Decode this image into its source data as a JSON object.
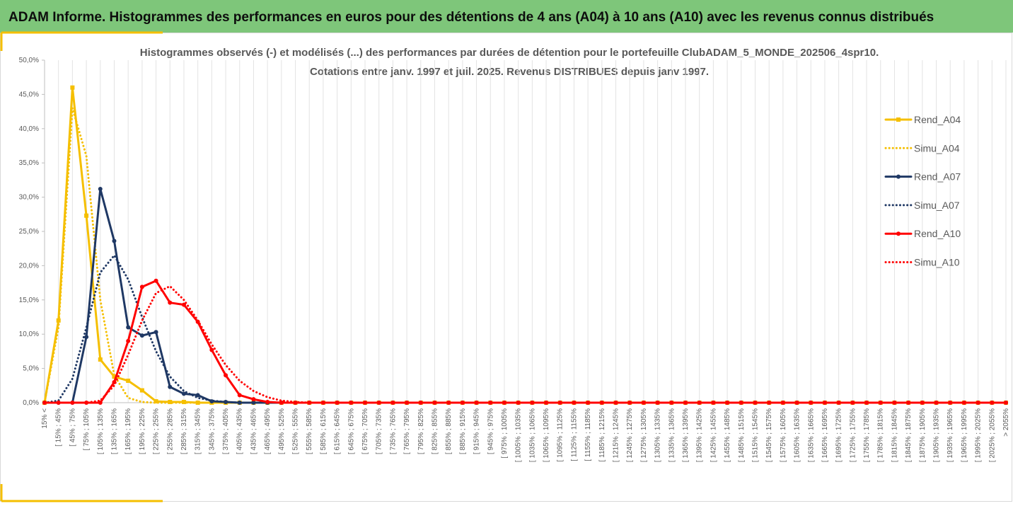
{
  "header": {
    "title": "ADAM Informe. Histogrammes des performances en euros pour des détentions de 4 ans (A04) à 10 ans (A10) avec les revenus connus distribués"
  },
  "chart_data": {
    "type": "line",
    "title": "Histogrammes observés (-) et modélisés (...) des performances par durées de détention pour le portefeuille ClubADAM_5_MONDE_202506_4spr10.",
    "subtitle": "Cotations entre janv. 1997 et juil. 2025. Revenus DISTRIBUES depuis janv 1997.",
    "categories": [
      "15% <",
      "[ 15% ; 45%",
      "[ 45% ; 75%",
      "[ 75% ; 105%",
      "[ 105% ; 135%",
      "[ 135% ; 165%",
      "[ 165% ; 195%",
      "[ 195% ; 225%",
      "[ 225% ; 255%",
      "[ 255% ; 285%",
      "[ 285% ; 315%",
      "[ 315% ; 345%",
      "[ 345% ; 375%",
      "[ 375% ; 405%",
      "[ 405% ; 435%",
      "[ 435% ; 465%",
      "[ 465% ; 495%",
      "[ 495% ; 525%",
      "[ 525% ; 555%",
      "[ 555% ; 585%",
      "[ 585% ; 615%",
      "[ 615% ; 645%",
      "[ 645% ; 675%",
      "[ 675% ; 705%",
      "[ 705% ; 735%",
      "[ 735% ; 765%",
      "[ 765% ; 795%",
      "[ 795% ; 825%",
      "[ 825% ; 855%",
      "[ 855% ; 885%",
      "[ 885% ; 915%",
      "[ 915% ; 945%",
      "[ 945% ; 975%",
      "[ 975% ; 1005%",
      "[ 1005% ; 1035%",
      "[ 1035% ; 1065%",
      "[ 1065% ; 1095%",
      "[ 1095% ; 1125%",
      "[ 1125% ; 1155%",
      "[ 1155% ; 1185%",
      "[ 1185% ; 1215%",
      "[ 1215% ; 1245%",
      "[ 1245% ; 1275%",
      "[ 1275% ; 1305%",
      "[ 1305% ; 1335%",
      "[ 1335% ; 1365%",
      "[ 1365% ; 1395%",
      "[ 1395% ; 1425%",
      "[ 1425% ; 1455%",
      "[ 1455% ; 1485%",
      "[ 1485% ; 1515%",
      "[ 1515% ; 1545%",
      "[ 1545% ; 1575%",
      "[ 1575% ; 1605%",
      "[ 1605% ; 1635%",
      "[ 1635% ; 1665%",
      "[ 1665% ; 1695%",
      "[ 1695% ; 1725%",
      "[ 1725% ; 1755%",
      "[ 1755% ; 1785%",
      "[ 1785% ; 1815%",
      "[ 1815% ; 1845%",
      "[ 1845% ; 1875%",
      "[ 1875% ; 1905%",
      "[ 1905% ; 1935%",
      "[ 1935% ; 1965%",
      "[ 1965% ; 1995%",
      "[ 1995% ; 2025%",
      "[ 2025% ; 2055%",
      "> 2055%"
    ],
    "series": [
      {
        "name": "Rend_A04",
        "color": "#f5bf00",
        "dash": "solid",
        "marker": "square",
        "values": [
          0,
          12,
          46,
          27.3,
          6.3,
          3.8,
          3.2,
          1.8,
          0.2,
          0.1,
          0.1,
          0,
          0,
          0,
          0,
          0,
          0,
          0,
          0,
          0,
          0,
          0,
          0,
          0,
          0,
          0,
          0,
          0,
          0,
          0,
          0,
          0,
          0,
          0,
          0,
          0,
          0,
          0,
          0,
          0,
          0,
          0,
          0,
          0,
          0,
          0,
          0,
          0,
          0,
          0,
          0,
          0,
          0,
          0,
          0,
          0,
          0,
          0,
          0,
          0,
          0,
          0,
          0,
          0,
          0,
          0,
          0,
          0,
          0,
          0
        ]
      },
      {
        "name": "Simu_A04",
        "color": "#f5bf00",
        "dash": "dotted",
        "marker": null,
        "values": [
          0,
          11,
          43,
          36,
          15,
          4,
          0.7,
          0.1,
          0,
          0,
          0,
          0,
          0,
          0,
          0,
          0,
          0,
          0,
          0,
          0,
          0,
          0,
          0,
          0,
          0,
          0,
          0,
          0,
          0,
          0,
          0,
          0,
          0,
          0,
          0,
          0,
          0,
          0,
          0,
          0,
          0,
          0,
          0,
          0,
          0,
          0,
          0,
          0,
          0,
          0,
          0,
          0,
          0,
          0,
          0,
          0,
          0,
          0,
          0,
          0,
          0,
          0,
          0,
          0,
          0,
          0,
          0,
          0,
          0,
          0
        ]
      },
      {
        "name": "Rend_A07",
        "color": "#1f3864",
        "dash": "solid",
        "marker": "circle",
        "values": [
          0,
          0,
          0,
          9.6,
          31.2,
          23.6,
          11,
          9.8,
          10.3,
          2.3,
          1.3,
          1.1,
          0.2,
          0.1,
          0,
          0,
          0,
          0,
          0,
          0,
          0,
          0,
          0,
          0,
          0,
          0,
          0,
          0,
          0,
          0,
          0,
          0,
          0,
          0,
          0,
          0,
          0,
          0,
          0,
          0,
          0,
          0,
          0,
          0,
          0,
          0,
          0,
          0,
          0,
          0,
          0,
          0,
          0,
          0,
          0,
          0,
          0,
          0,
          0,
          0,
          0,
          0,
          0,
          0,
          0,
          0,
          0,
          0,
          0,
          0
        ]
      },
      {
        "name": "Simu_A07",
        "color": "#1f3864",
        "dash": "dotted",
        "marker": null,
        "values": [
          0,
          0.3,
          3.5,
          11,
          19,
          21.5,
          18,
          12.5,
          7.5,
          3.8,
          1.7,
          0.7,
          0.3,
          0.1,
          0,
          0,
          0,
          0,
          0,
          0,
          0,
          0,
          0,
          0,
          0,
          0,
          0,
          0,
          0,
          0,
          0,
          0,
          0,
          0,
          0,
          0,
          0,
          0,
          0,
          0,
          0,
          0,
          0,
          0,
          0,
          0,
          0,
          0,
          0,
          0,
          0,
          0,
          0,
          0,
          0,
          0,
          0,
          0,
          0,
          0,
          0,
          0,
          0,
          0,
          0,
          0,
          0,
          0,
          0,
          0
        ]
      },
      {
        "name": "Rend_A10",
        "color": "#ff0000",
        "dash": "solid",
        "marker": "circle",
        "values": [
          0,
          0,
          0,
          0,
          0,
          3,
          9,
          16.9,
          17.8,
          14.6,
          14.3,
          11.8,
          7.7,
          4,
          1.1,
          0.5,
          0.1,
          0,
          0,
          0,
          0,
          0,
          0,
          0,
          0,
          0,
          0,
          0,
          0,
          0,
          0,
          0,
          0,
          0,
          0,
          0,
          0,
          0,
          0,
          0,
          0,
          0,
          0,
          0,
          0,
          0,
          0,
          0,
          0,
          0,
          0,
          0,
          0,
          0,
          0,
          0,
          0,
          0,
          0,
          0,
          0,
          0,
          0,
          0,
          0,
          0,
          0,
          0,
          0,
          0
        ]
      },
      {
        "name": "Simu_A10",
        "color": "#ff0000",
        "dash": "dotted",
        "marker": null,
        "values": [
          0,
          0,
          0,
          0,
          0.3,
          2.5,
          7,
          12,
          16,
          17,
          15,
          12,
          8.5,
          5.5,
          3.2,
          1.7,
          0.8,
          0.3,
          0.1,
          0,
          0,
          0,
          0,
          0,
          0,
          0,
          0,
          0,
          0,
          0,
          0,
          0,
          0,
          0,
          0,
          0,
          0,
          0,
          0,
          0,
          0,
          0,
          0,
          0,
          0,
          0,
          0,
          0,
          0,
          0,
          0,
          0,
          0,
          0,
          0,
          0,
          0,
          0,
          0,
          0,
          0,
          0,
          0,
          0,
          0,
          0,
          0,
          0,
          0,
          0
        ]
      }
    ],
    "ylim": [
      0,
      50
    ],
    "yticks": [
      {
        "value": 0,
        "label": "0,0%"
      },
      {
        "value": 5,
        "label": "5,0%"
      },
      {
        "value": 10,
        "label": "10,0%"
      },
      {
        "value": 15,
        "label": "15,0%"
      },
      {
        "value": 20,
        "label": "20,0%"
      },
      {
        "value": 25,
        "label": "25,0%"
      },
      {
        "value": 30,
        "label": "30,0%"
      },
      {
        "value": 35,
        "label": "35,0%"
      },
      {
        "value": 40,
        "label": "40,0%"
      },
      {
        "value": 45,
        "label": "45,0%"
      },
      {
        "value": 50,
        "label": "50,0%"
      }
    ],
    "xgrid": true,
    "legend": "right"
  }
}
